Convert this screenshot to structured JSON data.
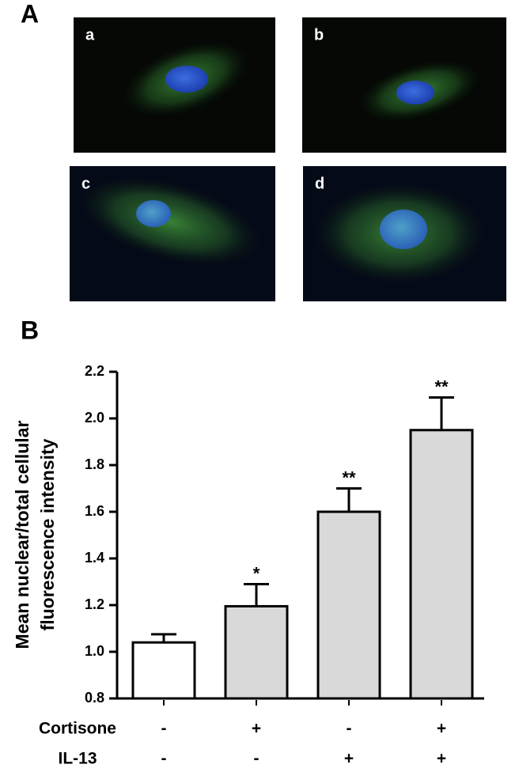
{
  "panel_a": {
    "label": "A",
    "images": [
      {
        "label": "a"
      },
      {
        "label": "b"
      },
      {
        "label": "c"
      },
      {
        "label": "d"
      }
    ]
  },
  "chart_data": {
    "type": "bar",
    "panel_label": "B",
    "y_label": [
      "Mean nuclear/total cellular",
      "fluorescence intensity"
    ],
    "factors": [
      {
        "name": "Cortisone",
        "levels": [
          "-",
          "+",
          "-",
          "+"
        ]
      },
      {
        "name": "IL-13",
        "levels": [
          "-",
          "-",
          "+",
          "+"
        ]
      }
    ],
    "values": [
      1.04,
      1.195,
      1.6,
      1.95
    ],
    "errors": [
      0.035,
      0.095,
      0.1,
      0.14
    ],
    "value_annotations": [
      null,
      "*",
      "**",
      "**"
    ],
    "colors": [
      "#ffffff",
      "#d9d9d9",
      "#d9d9d9",
      "#d9d9d9"
    ],
    "ylim": [
      0.8,
      2.2
    ],
    "yticks": [
      0.8,
      {
        "value": 1.0,
        "label": "1.0"
      },
      1.2,
      1.4,
      1.6,
      1.8,
      {
        "value": 2.0,
        "label": "2.0"
      },
      2.2
    ]
  }
}
